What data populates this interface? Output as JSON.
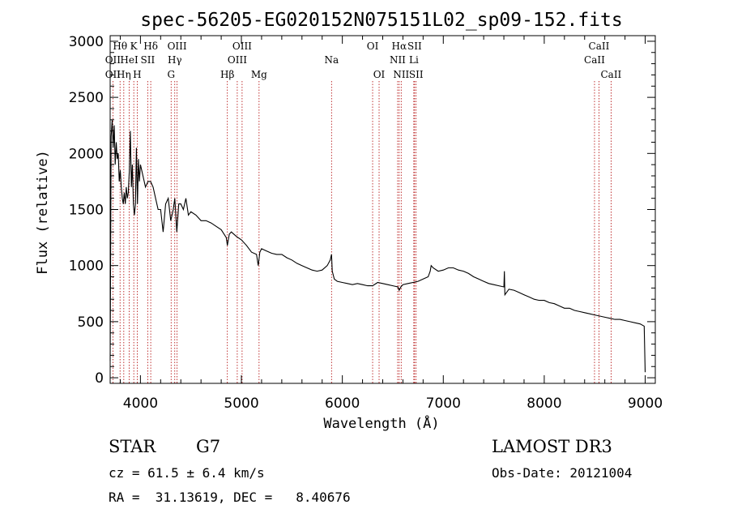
{
  "chart_data": {
    "type": "line",
    "title": "spec-56205-EG020152N075151L02_sp09-152.fits",
    "xlabel": "Wavelength (Å)",
    "ylabel": "Flux (relative)",
    "xlim": [
      3700,
      9100
    ],
    "ylim": [
      -50,
      3050
    ],
    "xticks": [
      4000,
      5000,
      6000,
      7000,
      8000,
      9000
    ],
    "xtick_labels": [
      "4000",
      "5000",
      "6000",
      "7000",
      "8000",
      "9000"
    ],
    "yticks": [
      0,
      500,
      1000,
      1500,
      2000,
      2500,
      3000
    ],
    "ytick_labels": [
      "0",
      "500",
      "1000",
      "1500",
      "2000",
      "2500",
      "3000"
    ],
    "grid": false,
    "series": [
      {
        "x": [
          3700,
          3710,
          3720,
          3730,
          3740,
          3750,
          3760,
          3770,
          3780,
          3790,
          3800,
          3810,
          3820,
          3830,
          3840,
          3850,
          3860,
          3870,
          3880,
          3890,
          3900,
          3910,
          3920,
          3930,
          3940,
          3950,
          3960,
          3970,
          3980,
          3990,
          4000,
          4025,
          4050,
          4075,
          4100,
          4125,
          4150,
          4175,
          4200,
          4225,
          4250,
          4275,
          4300,
          4325,
          4340,
          4360,
          4380,
          4400,
          4425,
          4450,
          4475,
          4500,
          4550,
          4600,
          4650,
          4700,
          4750,
          4800,
          4850,
          4861,
          4880,
          4900,
          4950,
          5000,
          5050,
          5100,
          5150,
          5167,
          5183,
          5200,
          5250,
          5300,
          5350,
          5400,
          5450,
          5500,
          5550,
          5600,
          5650,
          5700,
          5750,
          5800,
          5850,
          5880,
          5893,
          5900,
          5920,
          5950,
          6000,
          6050,
          6100,
          6150,
          6200,
          6250,
          6300,
          6350,
          6400,
          6450,
          6500,
          6550,
          6563,
          6580,
          6600,
          6650,
          6700,
          6750,
          6800,
          6850,
          6870,
          6880,
          6900,
          6950,
          7000,
          7050,
          7100,
          7150,
          7200,
          7250,
          7300,
          7350,
          7400,
          7450,
          7500,
          7550,
          7600,
          7605,
          7610,
          7650,
          7700,
          7750,
          7800,
          7850,
          7900,
          7950,
          8000,
          8050,
          8100,
          8150,
          8200,
          8250,
          8300,
          8350,
          8400,
          8450,
          8500,
          8550,
          8600,
          8650,
          8700,
          8750,
          8800,
          8850,
          8900,
          8950,
          8990,
          9000
        ],
        "y": [
          150,
          2150,
          2300,
          2050,
          2250,
          1900,
          2100,
          1950,
          2000,
          1750,
          1850,
          1700,
          1600,
          1550,
          1650,
          1550,
          1700,
          1600,
          1650,
          1850,
          2200,
          1700,
          1900,
          1550,
          1450,
          1550,
          2050,
          1550,
          1950,
          1750,
          1900,
          1800,
          1700,
          1750,
          1750,
          1700,
          1600,
          1500,
          1500,
          1300,
          1550,
          1600,
          1400,
          1500,
          1600,
          1300,
          1550,
          1550,
          1500,
          1600,
          1450,
          1480,
          1450,
          1400,
          1400,
          1380,
          1350,
          1320,
          1250,
          1180,
          1280,
          1300,
          1260,
          1230,
          1180,
          1120,
          1100,
          1000,
          1120,
          1150,
          1130,
          1110,
          1100,
          1100,
          1070,
          1050,
          1020,
          1000,
          980,
          960,
          950,
          960,
          1000,
          1050,
          1100,
          950,
          880,
          860,
          850,
          840,
          830,
          840,
          830,
          820,
          820,
          850,
          840,
          830,
          820,
          810,
          780,
          810,
          830,
          840,
          850,
          860,
          880,
          900,
          950,
          1000,
          980,
          950,
          960,
          980,
          980,
          960,
          950,
          930,
          900,
          880,
          860,
          840,
          830,
          820,
          810,
          950,
          740,
          790,
          780,
          760,
          740,
          720,
          700,
          690,
          690,
          670,
          660,
          640,
          620,
          620,
          600,
          590,
          580,
          570,
          560,
          550,
          540,
          530,
          520,
          520,
          510,
          500,
          490,
          480,
          460,
          50
        ]
      }
    ],
    "lines": [
      {
        "label": "Hθ",
        "x": 3798,
        "row": 1
      },
      {
        "label": "OII",
        "x": 3727,
        "row": 2
      },
      {
        "label": "OII",
        "x": 3727,
        "row": 3
      },
      {
        "label": "Hη",
        "x": 3835,
        "row": 3
      },
      {
        "label": "K",
        "x": 3934,
        "row": 1
      },
      {
        "label": "HeI",
        "x": 3889,
        "row": 2
      },
      {
        "label": "H",
        "x": 3968,
        "row": 3
      },
      {
        "label": "SII",
        "x": 4072,
        "row": 2
      },
      {
        "label": "Hδ",
        "x": 4102,
        "row": 1
      },
      {
        "label": "OIII",
        "x": 4363,
        "row": 1
      },
      {
        "label": "Hγ",
        "x": 4340,
        "row": 2
      },
      {
        "label": "G",
        "x": 4304,
        "row": 3
      },
      {
        "label": "Hβ",
        "x": 4861,
        "row": 3
      },
      {
        "label": "OIII",
        "x": 5007,
        "row": 1
      },
      {
        "label": "OIII",
        "x": 4959,
        "row": 2
      },
      {
        "label": "Mg",
        "x": 5175,
        "row": 3
      },
      {
        "label": "Na",
        "x": 5893,
        "row": 2
      },
      {
        "label": "OI",
        "x": 6300,
        "row": 1
      },
      {
        "label": "OI",
        "x": 6364,
        "row": 3
      },
      {
        "label": "Hα",
        "x": 6563,
        "row": 1
      },
      {
        "label": "NII",
        "x": 6548,
        "row": 2
      },
      {
        "label": "NII",
        "x": 6583,
        "row": 3
      },
      {
        "label": "SII",
        "x": 6716,
        "row": 1
      },
      {
        "label": "Li",
        "x": 6708,
        "row": 2
      },
      {
        "label": "SII",
        "x": 6731,
        "row": 3
      },
      {
        "label": "CaII",
        "x": 8542,
        "row": 1
      },
      {
        "label": "CaII",
        "x": 8498,
        "row": 2
      },
      {
        "label": "CaII",
        "x": 8662,
        "row": 3
      }
    ]
  },
  "info": {
    "class_label": "STAR",
    "subclass_label": "G7",
    "survey": "LAMOST DR3",
    "cz": "cz = 61.5 ± 6.4 km/s",
    "obs_date": "Obs-Date: 20121004",
    "coords": "RA =  31.13619, DEC =   8.40676"
  }
}
